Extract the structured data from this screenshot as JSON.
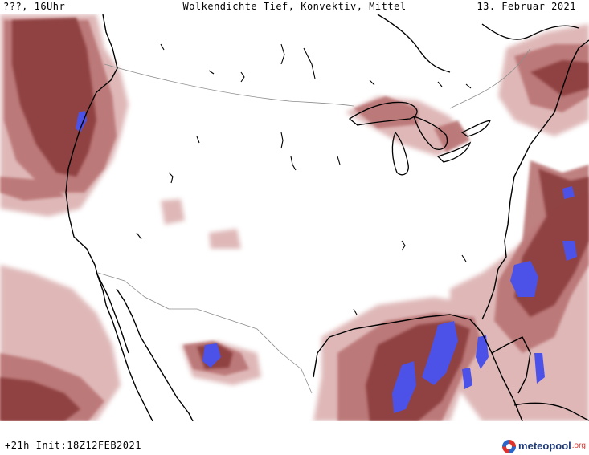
{
  "header": {
    "location_time": "???, 16Uhr",
    "title": "Wolkendichte  Tief, Konvektiv, Mittel",
    "date": "13. Februar 2021"
  },
  "footer": {
    "run_info": "+21h Init:18Z12FEB2021",
    "logo_brand": "meteopool",
    "logo_tld": ".org"
  },
  "colors": {
    "cloud_dark": "#8e3f3f",
    "cloud_mid": "#b97373",
    "cloud_light": "#dcb0b0",
    "convective": "#4c52e8",
    "coastline": "#000000",
    "borders": "#8c8c8c"
  },
  "legend_icons": {
    "logo": "meteopool-logo-icon"
  }
}
